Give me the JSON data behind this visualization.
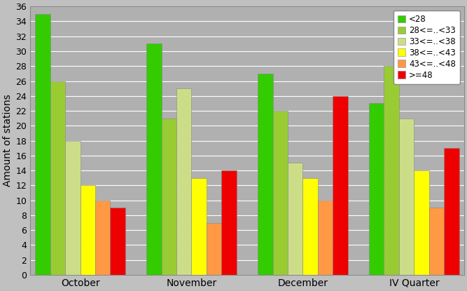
{
  "categories": [
    "October",
    "November",
    "December",
    "IV Quarter"
  ],
  "series": [
    {
      "label": "<28",
      "color": "#33cc00",
      "values": [
        35,
        31,
        27,
        23
      ]
    },
    {
      "label": "28<=..<33",
      "color": "#99cc33",
      "values": [
        26,
        21,
        22,
        28
      ]
    },
    {
      "label": "33<=..<38",
      "color": "#ccdd88",
      "values": [
        18,
        25,
        15,
        21
      ]
    },
    {
      "label": "38<=..<43",
      "color": "#ffff00",
      "values": [
        12,
        13,
        13,
        14
      ]
    },
    {
      "label": "43<=..<48",
      "color": "#ff9944",
      "values": [
        10,
        7,
        10,
        9
      ]
    },
    {
      "label": ">=48",
      "color": "#ee0000",
      "values": [
        9,
        14,
        24,
        17
      ]
    }
  ],
  "ylabel": "Amount of stations",
  "ylim": [
    0,
    36
  ],
  "yticks": [
    0,
    2,
    4,
    6,
    8,
    10,
    12,
    14,
    16,
    18,
    20,
    22,
    24,
    26,
    28,
    30,
    32,
    34,
    36
  ],
  "background_color": "#c0c0c0",
  "plot_bg_color": "#b0b0b0",
  "grid_color": "#ffffff",
  "bar_edge_color": "#888888",
  "bar_edge_width": 0.4,
  "figsize": [
    6.67,
    4.15
  ],
  "dpi": 100
}
